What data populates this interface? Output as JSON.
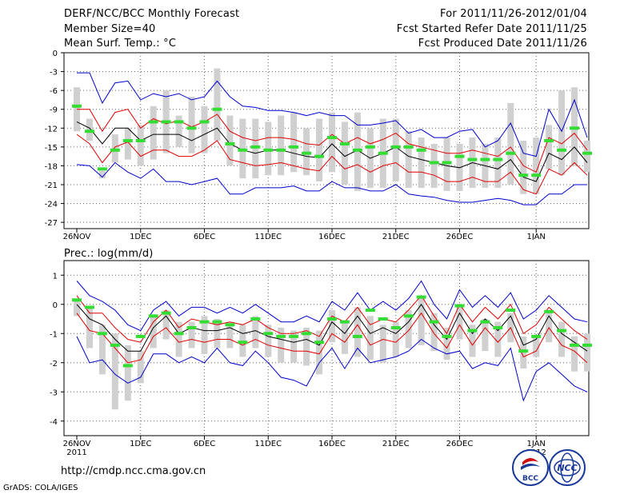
{
  "header": {
    "title": "DERF/NCC/BCC Monthly Forecast",
    "member_size": "Member Size=40",
    "variable": "Mean Surf. Temp.: °C",
    "for_range": "For 2011/11/26-2012/01/04",
    "started": "Fcst Started Refer Date 2011/11/25",
    "produced": "Fcst Produced Date 2011/11/26"
  },
  "footer": {
    "url": "http://cmdp.ncc.cma.gov.cn",
    "credit": "GrADS: COLA/IGES",
    "logo_bcc": "BCC",
    "logo_ncc": "NCC"
  },
  "colors": {
    "envelope": "#0000cc",
    "spread": "#e00000",
    "mean": "#000000",
    "box": "#d0d0d0",
    "marker": "#33dd33",
    "grid": "#666666"
  },
  "chart_data": [
    {
      "type": "box-ensemble",
      "title": "Mean Surf. Temp.: °C",
      "xlabel": "date",
      "ylabel": "°C",
      "days": 40,
      "ylim": [
        -28,
        0
      ],
      "yticks": [
        0,
        -3,
        -6,
        -9,
        -12,
        -15,
        -18,
        -21,
        -24,
        -27
      ],
      "xticks": [
        {
          "day": 0,
          "label": "26NOV",
          "sub": "2011"
        },
        {
          "day": 5,
          "label": "1DEC",
          "sub": ""
        },
        {
          "day": 10,
          "label": "6DEC",
          "sub": ""
        },
        {
          "day": 15,
          "label": "11DEC",
          "sub": ""
        },
        {
          "day": 20,
          "label": "16DEC",
          "sub": ""
        },
        {
          "day": 25,
          "label": "21DEC",
          "sub": ""
        },
        {
          "day": 30,
          "label": "26DEC",
          "sub": ""
        },
        {
          "day": 36,
          "label": "1JAN",
          "sub": "2012"
        }
      ],
      "max": [
        -3.2,
        -3.2,
        -8,
        -4.8,
        -4.5,
        -7.5,
        -6.5,
        -7,
        -6.5,
        -7.5,
        -7,
        -4.5,
        -7,
        -8.5,
        -8.7,
        -9.2,
        -9.2,
        -9.5,
        -10,
        -9.5,
        -10,
        -10,
        -11.5,
        -11.5,
        -11.2,
        -10.8,
        -12.8,
        -12.2,
        -13.5,
        -13.5,
        -12.5,
        -12.2,
        -15,
        -14,
        -11.2,
        -16,
        -16.5,
        -9,
        -12.5,
        -7.5,
        -13.5
      ],
      "min": [
        -17.8,
        -18,
        -19.8,
        -17.5,
        -19,
        -20,
        -18.5,
        -20.5,
        -20.5,
        -21,
        -20.5,
        -20,
        -22.5,
        -22.5,
        -21.5,
        -21.5,
        -21.5,
        -21.2,
        -22,
        -22,
        -20.5,
        -21.5,
        -21.5,
        -22,
        -22,
        -21,
        -22.5,
        -22.8,
        -23,
        -23.5,
        -23.8,
        -23.8,
        -23.5,
        -23.2,
        -23.5,
        -24.2,
        -24.2,
        -22.5,
        -22.5,
        -21,
        -21
      ],
      "upper": [
        -9,
        -9,
        -12.5,
        -9.5,
        -9,
        -12,
        -10.5,
        -11.3,
        -10.8,
        -11.8,
        -11,
        -9.8,
        -12.5,
        -13.5,
        -14,
        -13.5,
        -13.5,
        -13.8,
        -14.5,
        -14.7,
        -13,
        -14.5,
        -13.5,
        -14.5,
        -13.8,
        -12.8,
        -14.5,
        -15,
        -15.5,
        -16,
        -16,
        -15.5,
        -16,
        -16.5,
        -15,
        -18,
        -19,
        -13.5,
        -14.5,
        -12.8,
        -15.5
      ],
      "lower": [
        -13,
        -14.5,
        -17.5,
        -15,
        -14.2,
        -16.5,
        -15.5,
        -15.5,
        -16.5,
        -16.5,
        -15.5,
        -14,
        -17,
        -17.5,
        -18,
        -17.8,
        -17.5,
        -18,
        -18.5,
        -18.8,
        -16.5,
        -18.5,
        -17.8,
        -19,
        -18,
        -17.5,
        -19,
        -19,
        -19.5,
        -20.5,
        -20.5,
        -19.8,
        -20.5,
        -20.5,
        -19,
        -21.8,
        -22.5,
        -18.5,
        -19.5,
        -17.5,
        -19.5
      ],
      "mean": [
        -11,
        -12,
        -14.5,
        -12,
        -12,
        -14,
        -13,
        -13,
        -13,
        -14,
        -13,
        -12,
        -14.5,
        -15.5,
        -16,
        -15.5,
        -15.5,
        -16,
        -16.5,
        -16.7,
        -14.5,
        -16.5,
        -15.5,
        -16.8,
        -16,
        -15,
        -16.5,
        -17,
        -17.5,
        -18,
        -18.3,
        -17.5,
        -18,
        -18.5,
        -17,
        -19.8,
        -20.5,
        -16,
        -17,
        -15,
        -17.5
      ],
      "box_hi": [
        -5.5,
        -10.5,
        -18.8,
        -13,
        -12,
        -11.5,
        -8.5,
        -6,
        -10,
        -7,
        -8.5,
        -2.5,
        -10,
        -10.5,
        -10.5,
        -11,
        -10,
        -9.5,
        -12,
        -10.5,
        -9.5,
        -11,
        -9.5,
        -12,
        -10.5,
        -10.5,
        -12.5,
        -13.5,
        -14.5,
        -13.5,
        -14.5,
        -13.5,
        -14.5,
        -13.5,
        -8,
        -14,
        -13.5,
        -11.5,
        -6,
        -5.5,
        -14
      ],
      "box_lo": [
        -12.5,
        -14,
        -20,
        -17.5,
        -17,
        -18,
        -17,
        -16,
        -15,
        -16,
        -16,
        -14,
        -18,
        -20,
        -20,
        -19.5,
        -19.5,
        -19,
        -19.5,
        -20.5,
        -19,
        -21,
        -22,
        -21.5,
        -21.5,
        -20.5,
        -21.5,
        -21.5,
        -21.5,
        -22,
        -22,
        -21.5,
        -21.5,
        -21.5,
        -21,
        -22.5,
        -22.5,
        -18.5,
        -19.5,
        -18,
        -19
      ],
      "marker": [
        -8.5,
        -12.5,
        -18.5,
        -15.5,
        -14,
        -14,
        -11,
        -11,
        -11,
        -12,
        -11,
        -9,
        -14.5,
        -15.5,
        -15,
        -15.5,
        -15.5,
        -15,
        -16,
        -16.5,
        -13.5,
        -14.5,
        -15.5,
        -15,
        -16,
        -15,
        -15,
        -15.5,
        -17.5,
        -17.5,
        -16.5,
        -17,
        -17,
        -17,
        -16,
        -19.5,
        -19.5,
        -14,
        -15.5,
        -12,
        -16
      ]
    },
    {
      "type": "box-ensemble",
      "title": "Prec.: log(mm/d)",
      "xlabel": "date",
      "ylabel": "log(mm/d)",
      "days": 40,
      "ylim": [
        -4.5,
        1.5
      ],
      "yticks": [
        1,
        0,
        -1,
        -2,
        -3,
        -4
      ],
      "xticks": [
        {
          "day": 0,
          "label": "26NOV",
          "sub": "2011"
        },
        {
          "day": 5,
          "label": "1DEC",
          "sub": ""
        },
        {
          "day": 10,
          "label": "6DEC",
          "sub": ""
        },
        {
          "day": 15,
          "label": "11DEC",
          "sub": ""
        },
        {
          "day": 20,
          "label": "16DEC",
          "sub": ""
        },
        {
          "day": 25,
          "label": "21DEC",
          "sub": ""
        },
        {
          "day": 30,
          "label": "26DEC",
          "sub": ""
        },
        {
          "day": 36,
          "label": "1JAN",
          "sub": "2012"
        }
      ],
      "max": [
        0.8,
        0.3,
        0.1,
        -0.2,
        -0.7,
        -0.9,
        -0.2,
        0.1,
        -0.4,
        -0.1,
        -0.1,
        -0.3,
        -0.1,
        -0.3,
        0,
        -0.3,
        -0.6,
        -0.6,
        -0.4,
        -0.6,
        0.1,
        -0.2,
        0.4,
        -0.2,
        0.1,
        -0.2,
        0.2,
        0.8,
        0,
        -0.5,
        0.5,
        -0.1,
        0.3,
        -0.1,
        0.4,
        -0.5,
        -0.2,
        0.3,
        -0.1,
        -0.5,
        -0.6
      ],
      "min": [
        -1.1,
        -2,
        -1.9,
        -2.4,
        -2.7,
        -2.5,
        -1.7,
        -1.7,
        -2,
        -1.8,
        -2,
        -1.5,
        -2,
        -2.1,
        -1.6,
        -2,
        -2.5,
        -2.6,
        -2.8,
        -2,
        -1.5,
        -2.2,
        -1.5,
        -2,
        -1.9,
        -1.8,
        -1.6,
        -1.2,
        -1.5,
        -1.7,
        -1.6,
        -2.2,
        -2,
        -2.1,
        -1.5,
        -3.3,
        -2.3,
        -2,
        -2.4,
        -2.8,
        -3
      ],
      "upper": [
        0.3,
        -0.3,
        -0.3,
        -0.8,
        -1.2,
        -1.3,
        -0.6,
        -0.2,
        -0.8,
        -0.5,
        -0.6,
        -0.7,
        -0.6,
        -0.7,
        -0.5,
        -0.8,
        -1,
        -1,
        -0.9,
        -1.1,
        -0.4,
        -0.6,
        -0.1,
        -0.7,
        -0.5,
        -0.6,
        -0.2,
        0.3,
        -0.4,
        -1,
        0,
        -0.6,
        -0.1,
        -0.5,
        0,
        -1,
        -0.7,
        -0.1,
        -0.5,
        -0.9,
        -1.2
      ],
      "lower": [
        -0.3,
        -0.9,
        -1,
        -1.5,
        -2,
        -1.9,
        -1.1,
        -0.8,
        -1.3,
        -1.2,
        -1.3,
        -1.2,
        -1.2,
        -1.4,
        -1.2,
        -1.4,
        -1.5,
        -1.6,
        -1.6,
        -1.7,
        -1,
        -1.3,
        -0.7,
        -1.4,
        -1.2,
        -1.3,
        -0.9,
        -0.3,
        -1,
        -1.5,
        -0.7,
        -1.4,
        -0.8,
        -1.3,
        -0.8,
        -1.8,
        -1.6,
        -0.8,
        -1.4,
        -1.6,
        -2
      ],
      "mean": [
        0,
        -0.5,
        -0.7,
        -1.2,
        -1.6,
        -1.6,
        -0.8,
        -0.4,
        -1,
        -0.8,
        -0.9,
        -0.9,
        -0.8,
        -1,
        -0.9,
        -1.1,
        -1.2,
        -1.3,
        -1.2,
        -1.4,
        -0.6,
        -1,
        -0.4,
        -1,
        -0.8,
        -1,
        -0.6,
        0,
        -0.7,
        -1.2,
        -0.3,
        -1,
        -0.5,
        -0.9,
        -0.4,
        -1.4,
        -1.2,
        -0.4,
        -1,
        -1.3,
        -1.6
      ],
      "box_hi": [
        0.2,
        -0.1,
        -0.7,
        -1,
        -1.4,
        -1.6,
        -0.4,
        -0.2,
        -0.6,
        -0.6,
        -0.4,
        -0.5,
        -0.6,
        -0.7,
        -0.4,
        -0.7,
        -0.8,
        -0.9,
        -0.8,
        -0.9,
        -0.2,
        -0.6,
        -0.1,
        -0.4,
        -0.7,
        -0.6,
        -0.2,
        0.3,
        -0.3,
        -0.8,
        0,
        -0.7,
        -0.5,
        -0.6,
        -0.3,
        -1.1,
        -1.1,
        -0.3,
        -0.6,
        -1.1,
        -1
      ],
      "box_lo": [
        -0.4,
        -1.5,
        -2.4,
        -3.6,
        -3.3,
        -2.7,
        -1.5,
        -1.2,
        -1.8,
        -1.5,
        -1.7,
        -1.5,
        -1.5,
        -1.8,
        -1.5,
        -1.8,
        -2,
        -2,
        -2.1,
        -2.4,
        -1.3,
        -1.7,
        -1.8,
        -1.9,
        -2,
        -1.8,
        -1.5,
        -1.4,
        -1.6,
        -1.9,
        -1.2,
        -1.8,
        -1.6,
        -1.8,
        -1.3,
        -2.2,
        -1.8,
        -1.3,
        -1.8,
        -2.3,
        -2.3
      ],
      "marker": [
        0.15,
        -0.1,
        -1,
        -1.4,
        -2.1,
        -1.1,
        -0.4,
        -0.3,
        -1,
        -0.8,
        -0.6,
        -0.6,
        -0.7,
        -1.3,
        -0.5,
        -1,
        -1.1,
        -1.1,
        -1,
        -1.3,
        -0.5,
        -0.6,
        -1.1,
        -0.2,
        -0.5,
        -0.8,
        -0.4,
        0.25,
        -0.6,
        -1.1,
        -0.05,
        -0.9,
        -0.6,
        -0.8,
        -0.2,
        -1.6,
        -1.1,
        -0.25,
        -0.9,
        -1.4,
        -1.4
      ]
    }
  ]
}
